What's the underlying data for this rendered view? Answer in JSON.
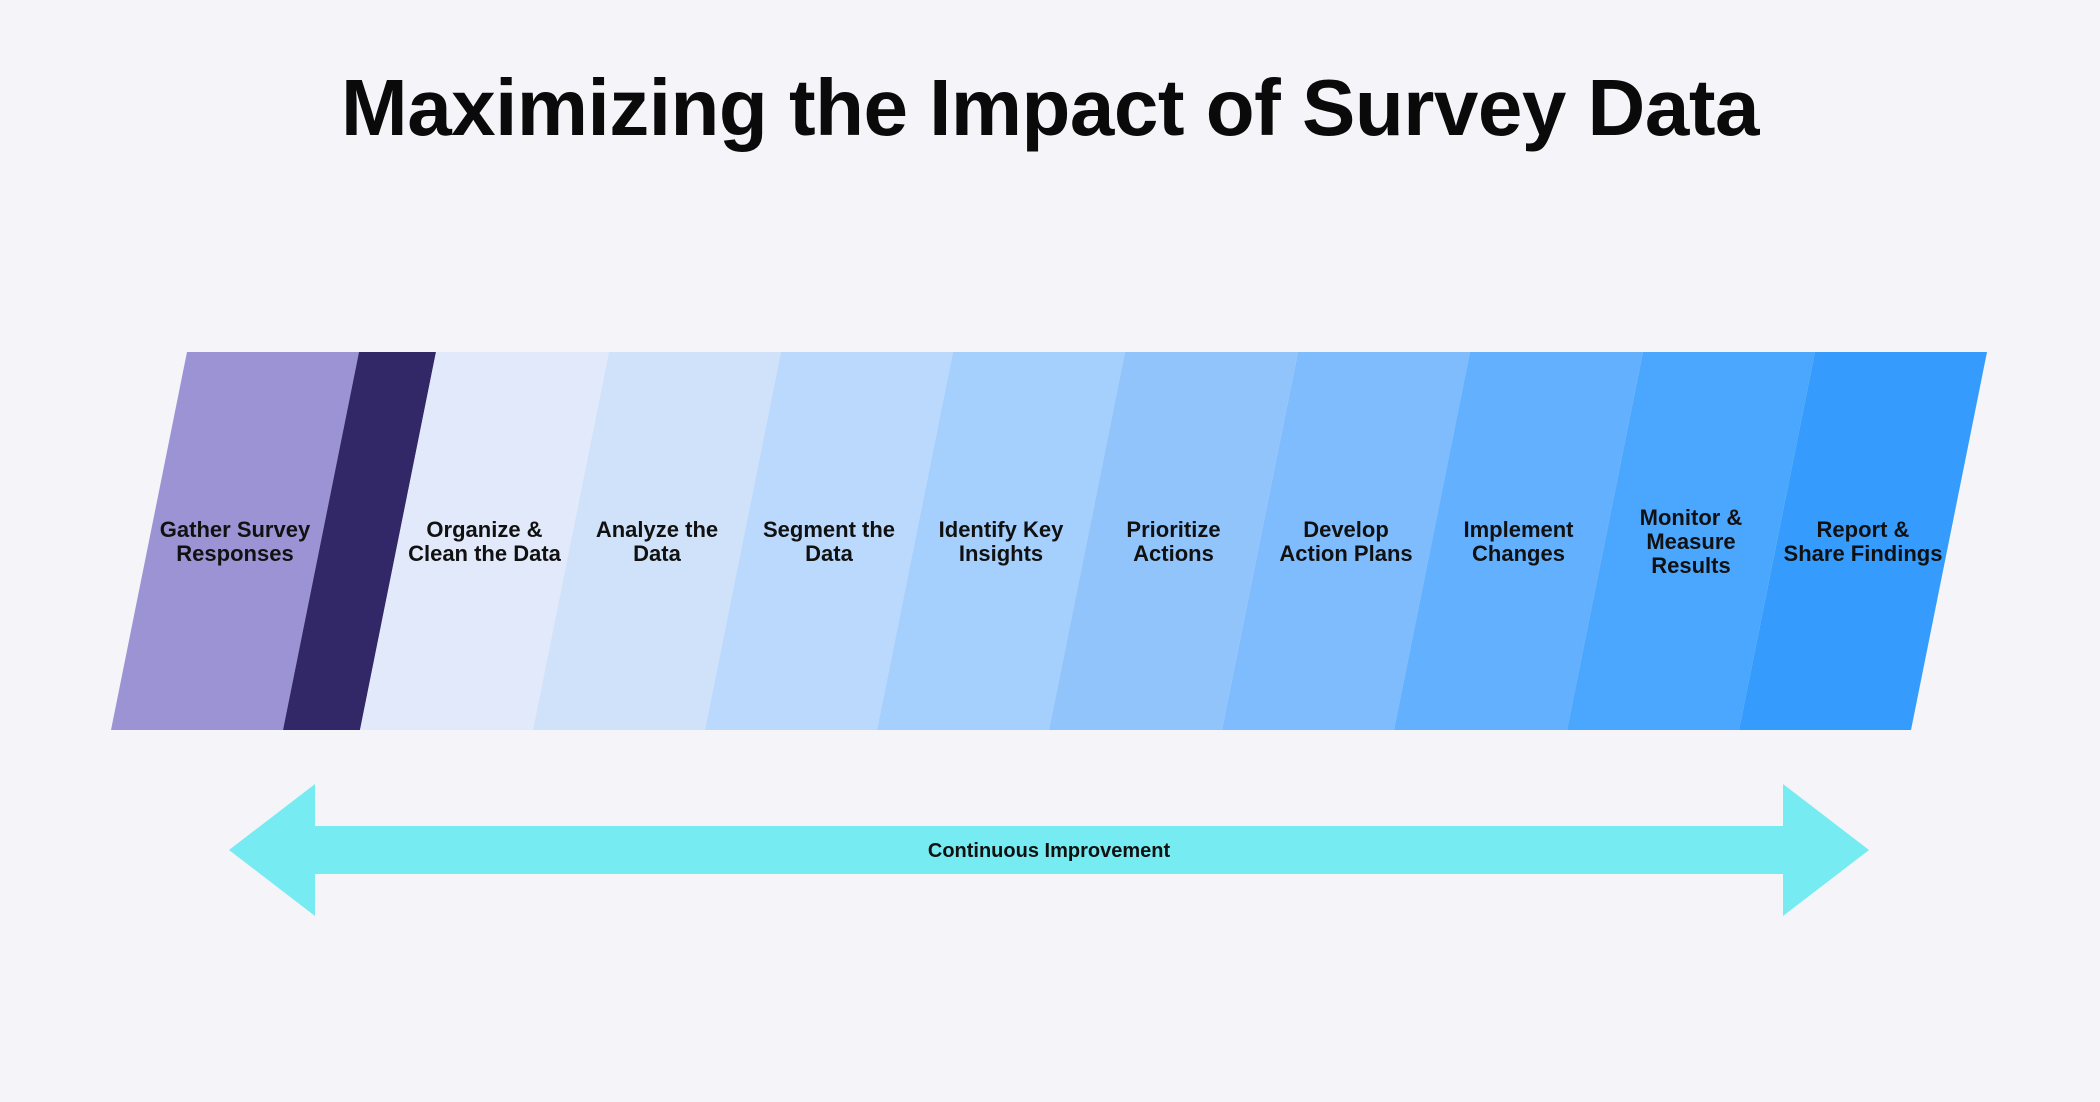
{
  "title": "Maximizing the Impact of Survey Data",
  "steps": [
    {
      "lines": [
        "Gather Survey",
        "Responses"
      ],
      "color": "#9b93d3"
    },
    {
      "lines": [],
      "color": "#322868"
    },
    {
      "lines": [
        "Organize &",
        "Clean the Data"
      ],
      "color": "#e1e9fa"
    },
    {
      "lines": [
        "Analyze the",
        "Data"
      ],
      "color": "#d0e2fa"
    },
    {
      "lines": [
        "Segment the",
        "Data"
      ],
      "color": "#bad9fc"
    },
    {
      "lines": [
        "Identify Key",
        "Insights"
      ],
      "color": "#a5cffc"
    },
    {
      "lines": [
        "Prioritize",
        "Actions"
      ],
      "color": "#92c4fc"
    },
    {
      "lines": [
        "Develop",
        "Action Plans"
      ],
      "color": "#7ebcfd"
    },
    {
      "lines": [
        "Implement",
        "Changes"
      ],
      "color": "#62b0fe"
    },
    {
      "lines": [
        "Monitor &",
        "Measure",
        "Results"
      ],
      "color": "#4ba6fe"
    },
    {
      "lines": [
        "Report &",
        "Share Findings"
      ],
      "color": "#359cfe"
    }
  ],
  "cycle_arrow": {
    "label": "Continuous Improvement",
    "color": "#76ebf2"
  }
}
